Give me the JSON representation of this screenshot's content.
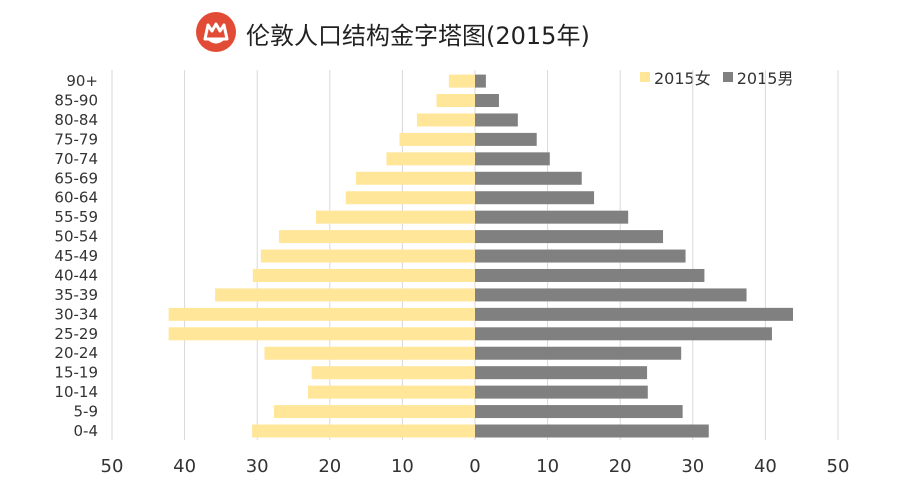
{
  "logo": {
    "colors": [
      "#e24b35",
      "#ffffff"
    ]
  },
  "title": "伦敦人口结构金字塔图(2015年)",
  "colors": {
    "female": "#ffe699",
    "male": "#808080",
    "grid": "#d9d9d9",
    "text": "#333333"
  },
  "chart_data": {
    "type": "bar",
    "orientation": "horizontal",
    "title": "伦敦人口结构金字塔图(2015年)",
    "categories": [
      "0-4",
      "5-9",
      "10-14",
      "15-19",
      "20-24",
      "25-29",
      "30-34",
      "35-39",
      "40-44",
      "45-49",
      "50-54",
      "55-59",
      "60-64",
      "65-69",
      "70-74",
      "75-79",
      "80-84",
      "85-90",
      "90+"
    ],
    "series": [
      {
        "name": "2015女",
        "side": "left",
        "values": [
          30.7,
          27.7,
          23,
          22.5,
          29,
          42.2,
          42.2,
          35.8,
          30.6,
          29.5,
          27,
          21.9,
          17.8,
          16.4,
          12.2,
          10.4,
          8,
          5.3,
          3.6
        ]
      },
      {
        "name": "2015男",
        "side": "right",
        "values": [
          32.2,
          28.6,
          23.8,
          23.7,
          28.4,
          40.9,
          43.8,
          37.4,
          31.6,
          29,
          25.9,
          21.1,
          16.4,
          14.7,
          10.3,
          8.5,
          5.9,
          3.3,
          1.5
        ]
      }
    ],
    "xlim": [
      -50,
      50
    ],
    "xticks": [
      -50,
      -40,
      -30,
      -20,
      -10,
      0,
      10,
      20,
      30,
      40,
      50
    ],
    "xtick_labels": [
      "50",
      "40",
      "30",
      "20",
      "10",
      "0",
      "10",
      "20",
      "30",
      "40",
      "50"
    ],
    "xlabel": "",
    "ylabel": "",
    "grid": "vertical",
    "legend_position": "top-right"
  }
}
